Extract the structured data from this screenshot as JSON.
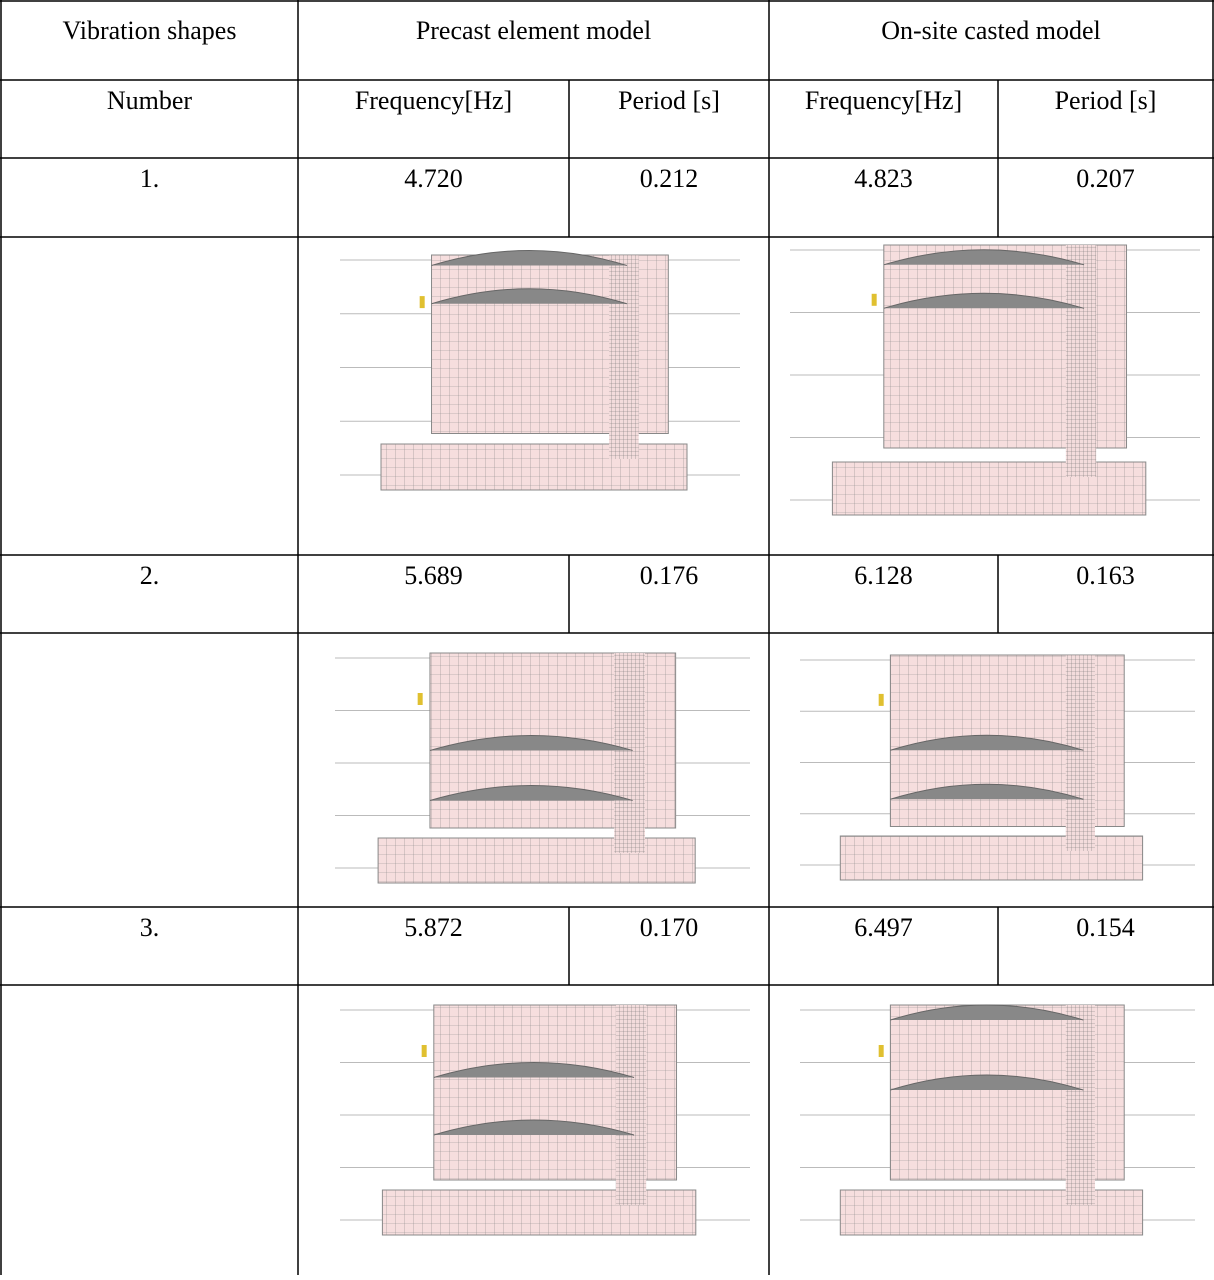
{
  "table": {
    "header": [
      "Vibration shapes",
      "Precast element model",
      "On-site casted model"
    ],
    "subheader": [
      "Number",
      "Frequency[Hz]",
      "Period [s]",
      "Frequency[Hz]",
      "Period [s]"
    ],
    "rows": [
      [
        "1.",
        "4.720",
        "0.212",
        "4.823",
        "0.207"
      ],
      [
        "2.",
        "5.689",
        "0.176",
        "6.128",
        "0.163"
      ],
      [
        "3.",
        "5.872",
        "0.170",
        "6.497",
        "0.154"
      ]
    ]
  }
}
